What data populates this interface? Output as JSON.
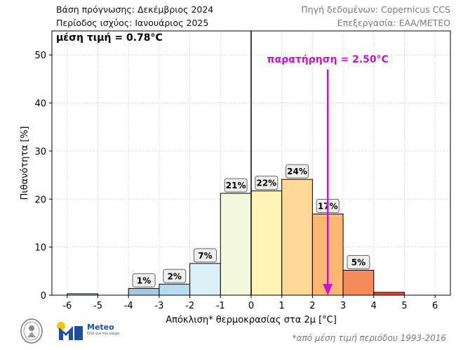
{
  "header": {
    "forecast_base": "Βάση πρόγνωσης: Δεκέμβριος 2024",
    "validity_period": "Περίοδος ισχύος: Ιανουάριος 2025",
    "data_source": "Πηγή δεδομένων: Copernicus CCS",
    "processing": "Επεξεργασία: ΕΑΑ/METEO"
  },
  "footer": {
    "footnote": "*από μέση τιμή περιόδου 1993-2016",
    "meteo_logo_text": "Meteo",
    "meteo_tagline": "Όλα για τον καιρό"
  },
  "chart_data": {
    "type": "bar",
    "ylabel": "Πιθανότητα [%]",
    "xlabel": "Απόκλιση* θερμοκρασίας στα 2μ [°C]",
    "xlim": [
      -6.5,
      6.5
    ],
    "ylim": [
      0,
      55
    ],
    "xticks": [
      -6,
      -5,
      -4,
      -3,
      -2,
      -1,
      0,
      1,
      2,
      3,
      4,
      5,
      6
    ],
    "yticks": [
      0,
      10,
      20,
      30,
      40,
      50
    ],
    "grid": true,
    "bin_width": 1,
    "bars": [
      {
        "from": -6,
        "to": -5,
        "value": 0.3,
        "color": "#bcd0e6",
        "label": ""
      },
      {
        "from": -4,
        "to": -3,
        "value": 1.4,
        "color": "#a6c9e6",
        "label": "1%"
      },
      {
        "from": -3,
        "to": -2,
        "value": 2.3,
        "color": "#b6dcef",
        "label": "2%"
      },
      {
        "from": -2,
        "to": -1,
        "value": 6.6,
        "color": "#dcf0f7",
        "label": "7%"
      },
      {
        "from": -1,
        "to": 0,
        "value": 21.2,
        "color": "#f4f9dc",
        "label": "21%"
      },
      {
        "from": 0,
        "to": 1,
        "value": 21.7,
        "color": "#fff3b5",
        "label": "22%"
      },
      {
        "from": 1,
        "to": 2,
        "value": 24.1,
        "color": "#fed898",
        "label": "24%"
      },
      {
        "from": 2,
        "to": 3,
        "value": 16.9,
        "color": "#fdb772",
        "label": "17%"
      },
      {
        "from": 3,
        "to": 4,
        "value": 5.2,
        "color": "#f68b5b",
        "label": "5%"
      },
      {
        "from": 4,
        "to": 5,
        "value": 0.6,
        "color": "#e24d35",
        "label": ""
      }
    ],
    "mean_line": {
      "x": 0,
      "color": "#000000"
    },
    "mean_annotation": "μέση τιμή = 0.78°C",
    "observation": {
      "x": 2.5,
      "label": "παρατήρηση = 2.50°C",
      "color": "#cc11cc",
      "arrow_top_y": 47
    }
  }
}
